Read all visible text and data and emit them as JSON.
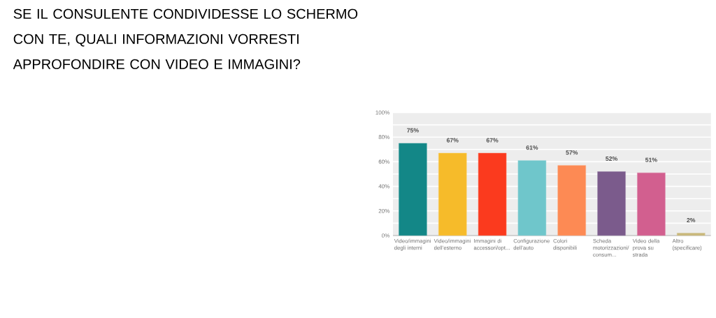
{
  "chart_data": {
    "type": "bar",
    "title": "SE IL CONSULENTE CONDIVIDESSE LO SCHERMO CON TE, QUALI INFORMAZIONI VORRESTI APPROFONDIRE CON VIDEO E IMMAGINI?",
    "categories": [
      "Video/immagini degli interni",
      "Video/immagini dell’esterno",
      "Immagini di accessori/opt...",
      "Configurazione dell’auto",
      "Colori disponibili",
      "Scheda motorizzazioni/consum...",
      "Video della prova su strada",
      "Altro (specificare)"
    ],
    "values": [
      75,
      67,
      67,
      61,
      57,
      52,
      51,
      2
    ],
    "value_labels": [
      "75%",
      "67%",
      "67%",
      "61%",
      "57%",
      "52%",
      "51%",
      "2%"
    ],
    "colors": [
      "#138787",
      "#f6bb2a",
      "#fb3a1e",
      "#6fc6cb",
      "#fd8a54",
      "#7b5b8c",
      "#d25f8f",
      "#c8b77a"
    ],
    "ylim": [
      0,
      100
    ],
    "yticks": [
      {
        "value": 0,
        "label": "0%"
      },
      {
        "value": 10,
        "label": null
      },
      {
        "value": 20,
        "label": "20%"
      },
      {
        "value": 30,
        "label": null
      },
      {
        "value": 40,
        "label": "40%"
      },
      {
        "value": 50,
        "label": null
      },
      {
        "value": 60,
        "label": "60%"
      },
      {
        "value": 70,
        "label": null
      },
      {
        "value": 80,
        "label": "80%"
      },
      {
        "value": 90,
        "label": null
      },
      {
        "value": 100,
        "label": "100%"
      }
    ],
    "grid": "y"
  }
}
